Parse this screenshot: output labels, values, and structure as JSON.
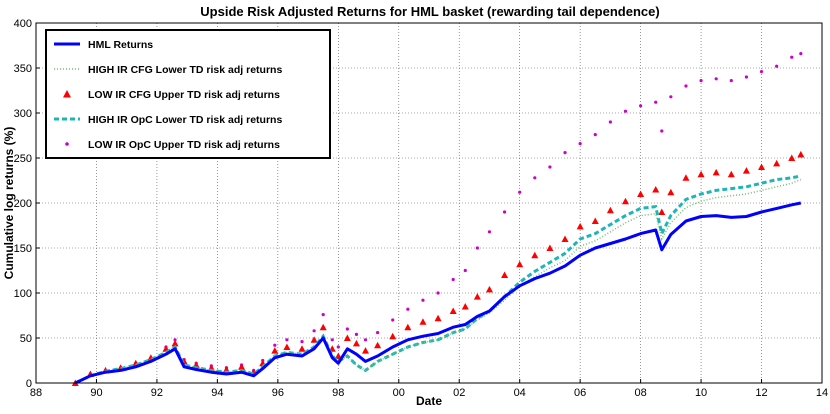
{
  "chart_data": {
    "type": "line",
    "title": "Upside Risk Adjusted Returns for HML basket (rewarding tail dependence)",
    "xlabel": "Date",
    "ylabel": "Cumulative log returns (%)",
    "x_tick_labels": [
      "88",
      "90",
      "92",
      "94",
      "96",
      "98",
      "00",
      "02",
      "04",
      "06",
      "08",
      "10",
      "12",
      "14"
    ],
    "y_tick_labels": [
      "0",
      "50",
      "100",
      "150",
      "200",
      "250",
      "300",
      "350",
      "400"
    ],
    "xlim": [
      1988,
      2014
    ],
    "ylim": [
      0,
      400
    ],
    "grid": true,
    "legend_position": "top-left",
    "x": [
      1989.3,
      1989.8,
      1990.3,
      1990.8,
      1991.3,
      1991.8,
      1992.3,
      1992.6,
      1992.9,
      1993.3,
      1993.8,
      1994.3,
      1994.8,
      1995.2,
      1995.5,
      1995.9,
      1996.3,
      1996.8,
      1997.2,
      1997.5,
      1997.8,
      1998.0,
      1998.3,
      1998.6,
      1998.9,
      1999.3,
      1999.8,
      2000.3,
      2000.8,
      2001.3,
      2001.8,
      2002.2,
      2002.6,
      2003.0,
      2003.5,
      2004.0,
      2004.5,
      2005.0,
      2005.5,
      2006.0,
      2006.5,
      2007.0,
      2007.5,
      2008.0,
      2008.5,
      2008.7,
      2009.0,
      2009.5,
      2010.0,
      2010.5,
      2011.0,
      2011.5,
      2012.0,
      2012.5,
      2013.0,
      2013.3
    ],
    "series": [
      {
        "name": "HML Returns",
        "color": "#0000ff",
        "style": "solid-thick",
        "values": [
          0,
          8,
          12,
          14,
          18,
          24,
          32,
          38,
          18,
          15,
          12,
          10,
          12,
          8,
          16,
          28,
          32,
          30,
          38,
          50,
          28,
          22,
          38,
          32,
          24,
          30,
          40,
          48,
          52,
          55,
          62,
          65,
          74,
          80,
          96,
          108,
          116,
          122,
          130,
          142,
          150,
          155,
          160,
          166,
          170,
          148,
          165,
          180,
          185,
          186,
          184,
          185,
          190,
          194,
          198,
          200
        ]
      },
      {
        "name": "HIGH IR CFG Lower TD risk adj returns",
        "color": "#6fbf6f",
        "style": "dotted",
        "values": [
          0,
          8,
          13,
          16,
          20,
          26,
          34,
          40,
          20,
          17,
          14,
          12,
          14,
          10,
          18,
          30,
          34,
          32,
          40,
          52,
          30,
          24,
          30,
          20,
          14,
          24,
          32,
          40,
          45,
          48,
          56,
          60,
          70,
          78,
          92,
          108,
          118,
          128,
          136,
          152,
          158,
          168,
          178,
          186,
          188,
          160,
          178,
          195,
          202,
          206,
          208,
          210,
          214,
          218,
          222,
          226
        ]
      },
      {
        "name": "LOW IR CFG Upper TD risk adj returns",
        "color": "#ff0000",
        "style": "triangles",
        "values": [
          0,
          10,
          14,
          17,
          22,
          28,
          38,
          44,
          24,
          20,
          17,
          15,
          18,
          12,
          22,
          36,
          40,
          38,
          48,
          62,
          38,
          30,
          50,
          44,
          36,
          42,
          52,
          62,
          68,
          72,
          80,
          85,
          96,
          104,
          120,
          132,
          142,
          150,
          160,
          174,
          180,
          192,
          202,
          210,
          215,
          190,
          212,
          228,
          232,
          234,
          232,
          236,
          240,
          244,
          250,
          254
        ]
      },
      {
        "name": "HIGH IR OpC Lower TD risk adj returns",
        "color": "#1fb5b5",
        "style": "dashed-thick",
        "values": [
          0,
          8,
          13,
          16,
          20,
          26,
          34,
          40,
          20,
          17,
          14,
          12,
          14,
          10,
          18,
          30,
          34,
          32,
          40,
          52,
          30,
          24,
          30,
          20,
          14,
          24,
          32,
          40,
          45,
          48,
          56,
          60,
          72,
          80,
          96,
          112,
          124,
          134,
          144,
          160,
          166,
          176,
          186,
          194,
          196,
          166,
          186,
          204,
          210,
          214,
          216,
          218,
          222,
          226,
          228,
          230
        ]
      },
      {
        "name": "LOW IR OpC Upper TD risk adj returns",
        "color": "#cc00cc",
        "style": "points",
        "values": [
          0,
          10,
          14,
          17,
          22,
          28,
          40,
          48,
          26,
          22,
          19,
          17,
          20,
          14,
          25,
          42,
          48,
          46,
          58,
          76,
          48,
          40,
          60,
          54,
          48,
          56,
          70,
          82,
          92,
          100,
          115,
          125,
          150,
          168,
          190,
          212,
          228,
          240,
          256,
          266,
          276,
          290,
          302,
          308,
          312,
          280,
          318,
          330,
          336,
          338,
          336,
          340,
          346,
          352,
          362,
          366
        ]
      }
    ]
  }
}
